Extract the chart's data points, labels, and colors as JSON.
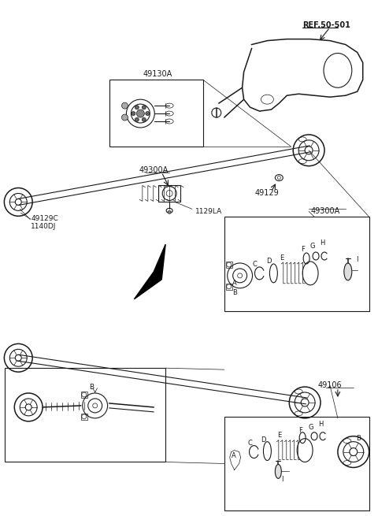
{
  "bg_color": "#ffffff",
  "line_color": "#1a1a1a",
  "labels": {
    "ref50501": "REF.50-501",
    "l49130A": "49130A",
    "l49300A_top": "49300A",
    "l49129": "49129",
    "l49300A_right": "49300A",
    "l1129LA": "1129LA",
    "l49129C": "49129C",
    "l1140DJ": "1140DJ",
    "l49106": "49106"
  }
}
